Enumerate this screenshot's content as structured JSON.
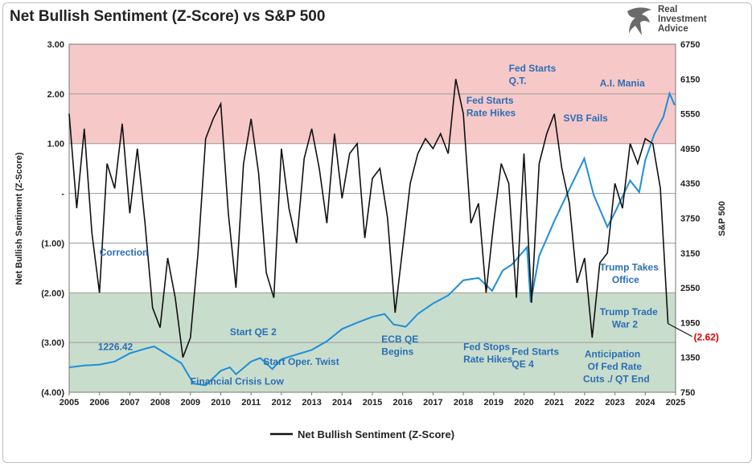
{
  "title": "Net Bullish Sentiment (Z-Score) vs S&P 500",
  "brand": {
    "line1": "Real",
    "line2": "Investment",
    "line3": "Advice"
  },
  "colors": {
    "sentiment": "#111111",
    "spx": "#1f8fd6",
    "bull_zone": "#f6c8c8",
    "bear_zone": "#c9ddcd",
    "annotation": "#2a6fb5",
    "callout": "#e00000"
  },
  "chart_data": {
    "type": "line",
    "title": "Net Bullish Sentiment (Z-Score) vs S&P 500",
    "ylabel": "Net Bullish Sentiment (Z-Score)",
    "y2label": "S&P 500",
    "xlim": [
      2005,
      2025
    ],
    "ylim": [
      -4,
      3
    ],
    "y2lim": [
      750,
      6750
    ],
    "x_ticks": [
      "2005",
      "2006",
      "2007",
      "2008",
      "2009",
      "2010",
      "2011",
      "2012",
      "2013",
      "2014",
      "2015",
      "2016",
      "2017",
      "2018",
      "2019",
      "2020",
      "2021",
      "2022",
      "2023",
      "2024",
      "2025"
    ],
    "y_ticks": [
      {
        "value": 3,
        "label": "3.00"
      },
      {
        "value": 2,
        "label": "2.00"
      },
      {
        "value": 1,
        "label": "1.00"
      },
      {
        "value": 0,
        "label": "-"
      },
      {
        "value": -1,
        "label": "(1.00)"
      },
      {
        "value": -2,
        "label": "(2.00)"
      },
      {
        "value": -3,
        "label": "(3.00)"
      },
      {
        "value": -4,
        "label": "(4.00)"
      }
    ],
    "y2_ticks": [
      6750,
      6150,
      5550,
      4950,
      4350,
      3750,
      3150,
      2550,
      1950,
      1350,
      750
    ],
    "zones": [
      {
        "from": 1,
        "to": 3,
        "name": "bullish"
      },
      {
        "from": -4,
        "to": -2,
        "name": "bearish"
      }
    ],
    "legend": {
      "position": "bottom",
      "entries": [
        "Net Bullish Sentiment (Z-Score)"
      ]
    },
    "series": [
      {
        "name": "Net Bullish Sentiment (Z-Score)",
        "axis": "left",
        "x": [
          2005.0,
          2005.25,
          2005.5,
          2005.75,
          2006.0,
          2006.25,
          2006.5,
          2006.75,
          2007.0,
          2007.25,
          2007.5,
          2007.75,
          2008.0,
          2008.25,
          2008.5,
          2008.75,
          2009.0,
          2009.25,
          2009.5,
          2009.75,
          2010.0,
          2010.25,
          2010.5,
          2010.75,
          2011.0,
          2011.25,
          2011.5,
          2011.75,
          2012.0,
          2012.25,
          2012.5,
          2012.75,
          2013.0,
          2013.25,
          2013.5,
          2013.75,
          2014.0,
          2014.25,
          2014.5,
          2014.75,
          2015.0,
          2015.25,
          2015.5,
          2015.75,
          2016.0,
          2016.25,
          2016.5,
          2016.75,
          2017.0,
          2017.25,
          2017.5,
          2017.75,
          2018.0,
          2018.25,
          2018.5,
          2018.75,
          2019.0,
          2019.25,
          2019.5,
          2019.75,
          2020.0,
          2020.25,
          2020.5,
          2020.75,
          2021.0,
          2021.25,
          2021.5,
          2021.75,
          2022.0,
          2022.25,
          2022.5,
          2022.75,
          2023.0,
          2023.25,
          2023.5,
          2023.75,
          2024.0,
          2024.25,
          2024.5,
          2024.75
        ],
        "y": [
          1.6,
          -0.3,
          1.3,
          -0.8,
          -2.0,
          0.6,
          0.1,
          1.4,
          -0.4,
          0.9,
          -0.6,
          -2.3,
          -2.7,
          -1.3,
          -2.1,
          -3.3,
          -2.9,
          -1.2,
          1.1,
          1.5,
          1.8,
          -0.4,
          -1.9,
          0.6,
          1.5,
          0.4,
          -1.6,
          -2.1,
          0.9,
          -0.3,
          -1.0,
          0.7,
          1.3,
          0.5,
          -0.6,
          1.2,
          -0.1,
          0.8,
          1.0,
          -0.9,
          0.3,
          0.5,
          -0.5,
          -2.4,
          -1.1,
          0.2,
          0.8,
          1.1,
          0.9,
          1.2,
          0.8,
          2.3,
          1.6,
          -0.6,
          -0.2,
          -2.0,
          -0.6,
          0.6,
          0.2,
          -2.1,
          0.8,
          -2.2,
          0.6,
          1.2,
          1.6,
          0.5,
          -0.2,
          -1.8,
          -1.3,
          -2.9,
          -1.4,
          -1.2,
          0.2,
          -0.3,
          1.0,
          0.6,
          1.1,
          1.0,
          0.1,
          -2.62
        ]
      },
      {
        "name": "S&P 500",
        "axis": "right",
        "x": [
          2005.0,
          2005.5,
          2006.0,
          2006.5,
          2007.0,
          2007.5,
          2007.8,
          2008.3,
          2008.7,
          2009.1,
          2009.5,
          2010.0,
          2010.3,
          2010.5,
          2011.0,
          2011.3,
          2011.7,
          2012.0,
          2012.5,
          2013.0,
          2013.5,
          2014.0,
          2014.5,
          2015.0,
          2015.4,
          2015.7,
          2016.1,
          2016.5,
          2017.0,
          2017.5,
          2018.0,
          2018.5,
          2018.95,
          2019.3,
          2019.6,
          2020.1,
          2020.22,
          2020.5,
          2021.0,
          2021.5,
          2021.99,
          2022.3,
          2022.75,
          2023.0,
          2023.5,
          2023.8,
          2024.0,
          2024.3,
          2024.6,
          2024.8,
          2024.97
        ],
        "y": [
          1180,
          1210,
          1226.42,
          1280,
          1420,
          1500,
          1540,
          1380,
          1250,
          900,
          870,
          1120,
          1180,
          1060,
          1280,
          1340,
          1150,
          1320,
          1400,
          1480,
          1630,
          1840,
          1950,
          2050,
          2100,
          1920,
          1880,
          2100,
          2280,
          2420,
          2680,
          2720,
          2500,
          2850,
          2950,
          3250,
          2300,
          3100,
          3700,
          4250,
          4780,
          4150,
          3600,
          3850,
          4400,
          4200,
          4750,
          5200,
          5500,
          5900,
          5700
        ]
      }
    ],
    "annotations": [
      {
        "text": "Correction",
        "x": 2006.0,
        "y": -1.25
      },
      {
        "text": "1226.42",
        "x": 2005.95,
        "y": -3.15
      },
      {
        "text": "Start QE 2",
        "x": 2010.3,
        "y": -2.85
      },
      {
        "text": "Financial Crisis Low",
        "x": 2009.0,
        "y": -3.85
      },
      {
        "text": "Start Oper. Twist",
        "x": 2011.4,
        "y": -3.45
      },
      {
        "text": "ECB QE",
        "x": 2015.3,
        "y": -3.0
      },
      {
        "text": "Begins",
        "x": 2015.3,
        "y": -3.25
      },
      {
        "text": "Fed Stops",
        "x": 2018.0,
        "y": -3.15
      },
      {
        "text": "Rate Hikes",
        "x": 2018.0,
        "y": -3.4
      },
      {
        "text": "Fed Starts",
        "x": 2019.6,
        "y": -3.25
      },
      {
        "text": "QE 4",
        "x": 2019.6,
        "y": -3.5
      },
      {
        "text": "Fed Starts",
        "x": 2019.5,
        "y": 2.45
      },
      {
        "text": "Q.T.",
        "x": 2019.5,
        "y": 2.2
      },
      {
        "text": "Fed Starts",
        "x": 2018.1,
        "y": 1.8
      },
      {
        "text": "Rate Hikes",
        "x": 2018.1,
        "y": 1.55
      },
      {
        "text": "A.I. Mania",
        "x": 2022.5,
        "y": 2.15
      },
      {
        "text": "SVB Fails",
        "x": 2021.3,
        "y": 1.45
      },
      {
        "text": "Trump Takes",
        "x": 2022.5,
        "y": -1.55
      },
      {
        "text": "Office",
        "x": 2022.9,
        "y": -1.8
      },
      {
        "text": "Trump Trade",
        "x": 2022.5,
        "y": -2.45
      },
      {
        "text": "War 2",
        "x": 2022.9,
        "y": -2.7
      },
      {
        "text": "Anticipation",
        "x": 2022.0,
        "y": -3.3
      },
      {
        "text": "Of Fed Rate",
        "x": 2022.1,
        "y": -3.55
      },
      {
        "text": "Cuts ./ QT End",
        "x": 2021.95,
        "y": -3.8
      }
    ],
    "callout": {
      "text": "(2.62)",
      "value": -2.62
    }
  }
}
